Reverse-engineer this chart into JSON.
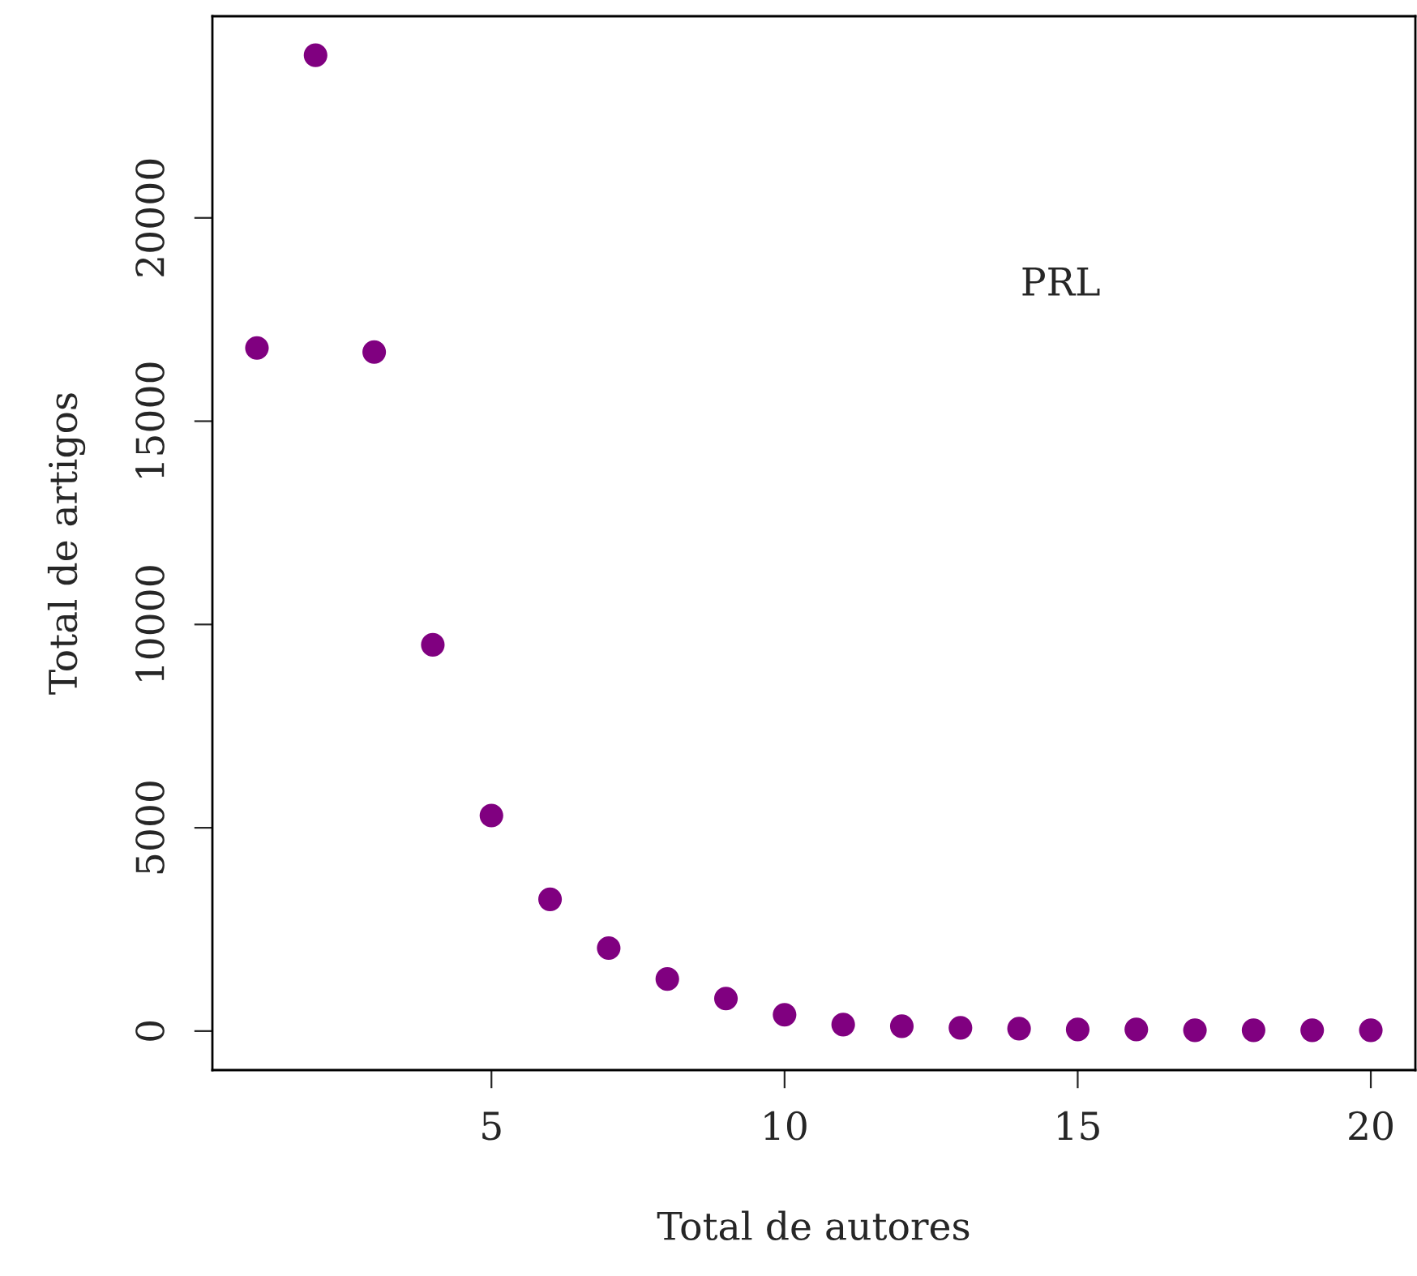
{
  "chart_data": {
    "type": "scatter",
    "xlabel": "Total de autores",
    "ylabel": "Total de artigos",
    "annotations": [
      "PRL"
    ],
    "x": [
      1,
      2,
      3,
      4,
      5,
      6,
      7,
      8,
      9,
      10,
      11,
      12,
      13,
      14,
      15,
      16,
      17,
      18,
      19,
      20
    ],
    "series": [
      {
        "color": "#800080",
        "values": [
          16800,
          24000,
          16700,
          9500,
          5300,
          3240,
          2040,
          1280,
          800,
          400,
          160,
          120,
          80,
          60,
          40,
          40,
          20,
          20,
          20,
          20
        ]
      }
    ],
    "xlim": [
      0.24,
      20.76
    ],
    "ylim": [
      -960,
      24960
    ],
    "xticks": [
      5,
      10,
      15,
      20
    ],
    "yticks": [
      0,
      5000,
      10000,
      15000,
      20000
    ],
    "marker": "circle",
    "grid": false,
    "legend": false
  }
}
